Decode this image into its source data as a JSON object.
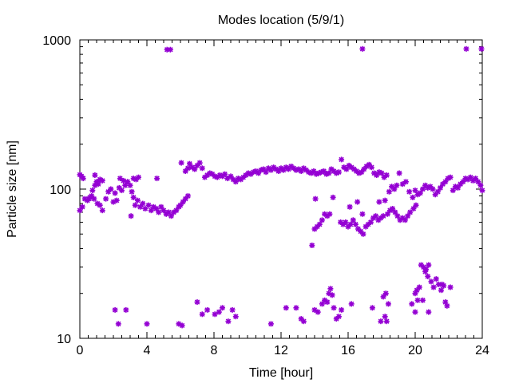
{
  "chart_data": {
    "type": "scatter",
    "title": "Modes location (5/9/1)",
    "xlabel": "Time [hour]",
    "ylabel": "Particle size [nm]",
    "xlim": [
      0,
      24
    ],
    "ylim": [
      10,
      1000
    ],
    "yscale": "log",
    "x_ticks": [
      0,
      4,
      8,
      12,
      16,
      20,
      24
    ],
    "x_tick_labels": [
      "0",
      "4",
      "8",
      "12",
      "16",
      "20",
      "24"
    ],
    "y_ticks": [
      10,
      100,
      1000
    ],
    "y_tick_labels": [
      "10",
      "100",
      "1000"
    ],
    "grid": false,
    "legend": "none",
    "marker": "asterisk",
    "color": "#9400d3",
    "series": [
      {
        "points": [
          [
            0.0,
            125
          ],
          [
            0.1,
            122
          ],
          [
            0.2,
            118
          ],
          [
            0.0,
            72
          ],
          [
            0.15,
            76
          ],
          [
            0.3,
            86
          ],
          [
            0.45,
            84
          ],
          [
            0.6,
            88
          ],
          [
            0.75,
            98
          ],
          [
            0.9,
            106
          ],
          [
            1.0,
            112
          ],
          [
            1.1,
            108
          ],
          [
            1.2,
            116
          ],
          [
            1.35,
            114
          ],
          [
            0.55,
            86
          ],
          [
            0.7,
            90
          ],
          [
            0.85,
            86
          ],
          [
            0.9,
            124
          ],
          [
            1.05,
            80
          ],
          [
            1.2,
            78
          ],
          [
            1.35,
            72
          ],
          [
            1.55,
            86
          ],
          [
            1.7,
            96
          ],
          [
            1.85,
            100
          ],
          [
            2.0,
            82
          ],
          [
            2.1,
            94
          ],
          [
            2.2,
            84
          ],
          [
            2.35,
            102
          ],
          [
            2.5,
            98
          ],
          [
            2.7,
            106
          ],
          [
            2.85,
            112
          ],
          [
            3.0,
            106
          ],
          [
            3.1,
            96
          ],
          [
            3.2,
            88
          ],
          [
            3.3,
            78
          ],
          [
            3.45,
            84
          ],
          [
            3.6,
            76
          ],
          [
            3.75,
            80
          ],
          [
            3.9,
            74
          ],
          [
            4.1,
            78
          ],
          [
            4.25,
            72
          ],
          [
            4.4,
            76
          ],
          [
            4.55,
            74
          ],
          [
            4.7,
            70
          ],
          [
            4.85,
            76
          ],
          [
            5.0,
            72
          ],
          [
            5.15,
            68
          ],
          [
            5.3,
            70
          ],
          [
            5.45,
            66
          ],
          [
            5.6,
            70
          ],
          [
            5.75,
            72
          ],
          [
            5.9,
            76
          ],
          [
            6.0,
            78
          ],
          [
            6.15,
            82
          ],
          [
            6.3,
            86
          ],
          [
            6.45,
            90
          ],
          [
            3.2,
            118
          ],
          [
            3.35,
            116
          ],
          [
            3.5,
            120
          ],
          [
            4.6,
            118
          ],
          [
            2.4,
            118
          ],
          [
            2.6,
            114
          ],
          [
            3.05,
            66
          ],
          [
            6.05,
            150
          ],
          [
            6.3,
            132
          ],
          [
            6.45,
            138
          ],
          [
            6.55,
            148
          ],
          [
            6.7,
            140
          ],
          [
            6.85,
            136
          ],
          [
            7.0,
            144
          ],
          [
            7.15,
            150
          ],
          [
            7.3,
            138
          ],
          [
            7.45,
            120
          ],
          [
            7.6,
            124
          ],
          [
            7.75,
            128
          ],
          [
            7.9,
            126
          ],
          [
            8.05,
            122
          ],
          [
            8.2,
            120
          ],
          [
            8.35,
            124
          ],
          [
            8.5,
            122
          ],
          [
            8.65,
            126
          ],
          [
            8.8,
            118
          ],
          [
            9.0,
            122
          ],
          [
            9.15,
            116
          ],
          [
            9.3,
            112
          ],
          [
            9.45,
            118
          ],
          [
            9.6,
            116
          ],
          [
            9.75,
            120
          ],
          [
            9.9,
            124
          ],
          [
            10.05,
            128
          ],
          [
            10.2,
            126
          ],
          [
            10.35,
            130
          ],
          [
            10.5,
            132
          ],
          [
            10.65,
            128
          ],
          [
            10.8,
            134
          ],
          [
            10.95,
            136
          ],
          [
            11.1,
            130
          ],
          [
            11.25,
            138
          ],
          [
            11.4,
            134
          ],
          [
            11.55,
            140
          ],
          [
            11.7,
            136
          ],
          [
            11.85,
            132
          ],
          [
            12.0,
            138
          ],
          [
            12.15,
            134
          ],
          [
            12.3,
            140
          ],
          [
            12.45,
            136
          ],
          [
            12.6,
            142
          ],
          [
            12.75,
            138
          ],
          [
            12.9,
            134
          ],
          [
            13.05,
            136
          ],
          [
            13.2,
            132
          ],
          [
            13.35,
            138
          ],
          [
            13.5,
            134
          ],
          [
            13.65,
            130
          ],
          [
            13.8,
            128
          ],
          [
            13.95,
            132
          ],
          [
            14.1,
            126
          ],
          [
            14.25,
            128
          ],
          [
            14.4,
            130
          ],
          [
            14.55,
            132
          ],
          [
            14.7,
            126
          ],
          [
            14.85,
            128
          ],
          [
            15.0,
            136
          ],
          [
            15.15,
            132
          ],
          [
            15.3,
            128
          ],
          [
            15.45,
            130
          ],
          [
            15.6,
            158
          ],
          [
            15.75,
            140
          ],
          [
            15.9,
            136
          ],
          [
            16.05,
            144
          ],
          [
            16.2,
            140
          ],
          [
            16.35,
            136
          ],
          [
            16.5,
            132
          ],
          [
            16.65,
            128
          ],
          [
            16.8,
            130
          ],
          [
            16.95,
            136
          ],
          [
            17.1,
            142
          ],
          [
            17.25,
            146
          ],
          [
            17.4,
            140
          ],
          [
            17.55,
            128
          ],
          [
            17.7,
            124
          ],
          [
            17.85,
            130
          ],
          [
            18.0,
            128
          ],
          [
            18.15,
            120
          ],
          [
            18.3,
            124
          ],
          [
            18.45,
            96
          ],
          [
            18.6,
            104
          ],
          [
            18.75,
            100
          ],
          [
            18.9,
            106
          ],
          [
            19.05,
            128
          ],
          [
            19.25,
            108
          ],
          [
            19.45,
            112
          ],
          [
            19.65,
            96
          ],
          [
            19.85,
            88
          ],
          [
            20.0,
            98
          ],
          [
            20.15,
            92
          ],
          [
            20.3,
            94
          ],
          [
            20.45,
            100
          ],
          [
            20.6,
            106
          ],
          [
            20.75,
            102
          ],
          [
            20.9,
            104
          ],
          [
            21.05,
            100
          ],
          [
            21.2,
            92
          ],
          [
            21.35,
            96
          ],
          [
            21.5,
            102
          ],
          [
            21.65,
            108
          ],
          [
            21.8,
            112
          ],
          [
            21.95,
            118
          ],
          [
            22.1,
            120
          ],
          [
            22.25,
            98
          ],
          [
            22.4,
            104
          ],
          [
            22.55,
            102
          ],
          [
            22.7,
            108
          ],
          [
            22.85,
            112
          ],
          [
            23.0,
            118
          ],
          [
            23.15,
            116
          ],
          [
            23.3,
            120
          ],
          [
            23.45,
            114
          ],
          [
            23.6,
            118
          ],
          [
            23.75,
            112
          ],
          [
            23.9,
            106
          ],
          [
            24.0,
            98
          ],
          [
            14.05,
            86
          ],
          [
            15.1,
            88
          ],
          [
            16.55,
            82
          ],
          [
            17.85,
            82
          ],
          [
            18.2,
            84
          ],
          [
            13.85,
            42
          ],
          [
            14.0,
            54
          ],
          [
            14.15,
            56
          ],
          [
            14.3,
            58
          ],
          [
            14.45,
            62
          ],
          [
            14.6,
            68
          ],
          [
            14.75,
            66
          ],
          [
            14.9,
            68
          ],
          [
            15.55,
            60
          ],
          [
            15.7,
            58
          ],
          [
            15.85,
            60
          ],
          [
            16.0,
            56
          ],
          [
            16.15,
            58
          ],
          [
            16.3,
            62
          ],
          [
            16.45,
            58
          ],
          [
            16.6,
            54
          ],
          [
            16.75,
            52
          ],
          [
            16.9,
            50
          ],
          [
            17.05,
            56
          ],
          [
            17.2,
            58
          ],
          [
            17.35,
            60
          ],
          [
            17.5,
            64
          ],
          [
            17.65,
            66
          ],
          [
            17.8,
            62
          ],
          [
            17.95,
            64
          ],
          [
            18.1,
            66
          ],
          [
            18.35,
            68
          ],
          [
            18.5,
            72
          ],
          [
            18.65,
            74
          ],
          [
            18.8,
            70
          ],
          [
            18.95,
            66
          ],
          [
            19.1,
            62
          ],
          [
            19.25,
            64
          ],
          [
            19.4,
            62
          ],
          [
            19.55,
            66
          ],
          [
            19.7,
            70
          ],
          [
            19.9,
            74
          ],
          [
            20.05,
            78
          ],
          [
            16.1,
            76
          ],
          [
            16.85,
            68
          ],
          [
            2.1,
            15.5
          ],
          [
            2.3,
            12.5
          ],
          [
            2.75,
            15.5
          ],
          [
            4.0,
            12.5
          ],
          [
            5.9,
            12.5
          ],
          [
            6.1,
            12.2
          ],
          [
            7.0,
            17.5
          ],
          [
            7.3,
            14.5
          ],
          [
            7.6,
            15.5
          ],
          [
            8.05,
            14.5
          ],
          [
            8.3,
            15
          ],
          [
            8.5,
            16
          ],
          [
            8.85,
            13
          ],
          [
            9.1,
            15.5
          ],
          [
            9.3,
            14
          ],
          [
            11.4,
            12.5
          ],
          [
            12.3,
            16
          ],
          [
            12.9,
            16
          ],
          [
            13.2,
            13.5
          ],
          [
            13.35,
            13
          ],
          [
            14.0,
            15.5
          ],
          [
            14.2,
            15
          ],
          [
            14.45,
            17
          ],
          [
            14.6,
            18
          ],
          [
            14.75,
            17.5
          ],
          [
            14.85,
            20
          ],
          [
            14.95,
            21.5
          ],
          [
            15.05,
            19.5
          ],
          [
            15.15,
            16
          ],
          [
            15.3,
            13.5
          ],
          [
            15.45,
            14
          ],
          [
            15.6,
            15.5
          ],
          [
            16.2,
            17
          ],
          [
            17.45,
            16
          ],
          [
            17.95,
            13
          ],
          [
            18.1,
            19
          ],
          [
            18.25,
            20
          ],
          [
            18.4,
            17
          ],
          [
            18.2,
            14
          ],
          [
            18.3,
            13
          ],
          [
            19.8,
            17
          ],
          [
            20.0,
            20
          ],
          [
            20.1,
            21
          ],
          [
            20.15,
            18
          ],
          [
            20.25,
            22
          ],
          [
            20.0,
            15
          ],
          [
            20.35,
            31
          ],
          [
            20.5,
            30
          ],
          [
            20.65,
            29
          ],
          [
            20.8,
            31
          ],
          [
            20.95,
            24
          ],
          [
            21.1,
            22
          ],
          [
            21.25,
            25
          ],
          [
            21.4,
            23
          ],
          [
            21.55,
            21
          ],
          [
            21.7,
            22.5
          ],
          [
            21.8,
            17.5
          ],
          [
            21.9,
            16.5
          ],
          [
            22.1,
            22
          ],
          [
            20.6,
            28
          ],
          [
            20.75,
            26
          ],
          [
            21.6,
            23
          ],
          [
            20.45,
            18
          ],
          [
            20.8,
            15
          ]
        ]
      },
      {
        "points": [
          [
            5.2,
            860
          ],
          [
            5.4,
            860
          ],
          [
            16.85,
            870
          ],
          [
            23.05,
            870
          ],
          [
            23.95,
            870
          ]
        ]
      }
    ]
  }
}
